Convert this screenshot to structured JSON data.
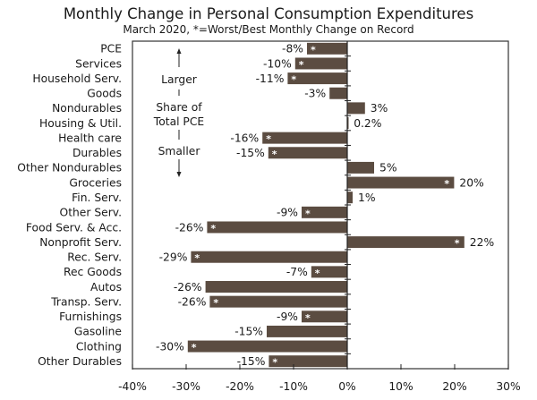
{
  "chart_data": {
    "type": "bar",
    "orientation": "horizontal",
    "title": "Monthly Change in Personal Consumption Expenditures",
    "subtitle": "March 2020, *=Worst/Best Monthly Change on Record",
    "xlabel": "",
    "ylabel": "",
    "xlim": [
      -40,
      30
    ],
    "x_ticks": [
      -40,
      -30,
      -20,
      -10,
      0,
      10,
      20,
      30
    ],
    "x_tick_labels": [
      "-40%",
      "-30%",
      "-20%",
      "-10%",
      "0%",
      "10%",
      "20%",
      "30%"
    ],
    "grid": false,
    "bar_color": "#5b4c41",
    "categories": [
      "PCE",
      "Services",
      "Household Serv.",
      "Goods",
      "Nondurables",
      "Housing & Util.",
      "Health care",
      "Durables",
      "Other Nondurables",
      "Groceries",
      "Fin. Serv.",
      "Other Serv.",
      "Food Serv. & Acc.",
      "Nonprofit Serv.",
      "Rec. Serv.",
      "Rec Goods",
      "Autos",
      "Transp. Serv.",
      "Furnishings",
      "Gasoline",
      "Clothing",
      "Other Durables"
    ],
    "values": [
      -7.5,
      -9.7,
      -11.1,
      -3.3,
      3.3,
      0.2,
      -15.8,
      -14.7,
      5.0,
      19.9,
      1.0,
      -8.5,
      -26.1,
      21.8,
      -29.1,
      -6.7,
      -26.4,
      -25.6,
      -8.5,
      -15.0,
      -29.7,
      -14.6
    ],
    "data_labels": [
      "-8%",
      "-10%",
      "-11%",
      "-3%",
      "3%",
      "0.2%",
      "-16%",
      "-15%",
      "5%",
      "20%",
      "1%",
      "-9%",
      "-26%",
      "22%",
      "-29%",
      "-7%",
      "-26%",
      "-26%",
      "-9%",
      "-15%",
      "-30%",
      "-15%"
    ],
    "record_flags": [
      true,
      true,
      true,
      false,
      false,
      false,
      true,
      true,
      false,
      true,
      false,
      true,
      true,
      true,
      true,
      true,
      false,
      true,
      true,
      false,
      true,
      true
    ],
    "record_marker": "*",
    "annotation": {
      "top": "Larger",
      "middle": [
        "Share of",
        "Total PCE"
      ],
      "bottom": "Smaller"
    }
  }
}
